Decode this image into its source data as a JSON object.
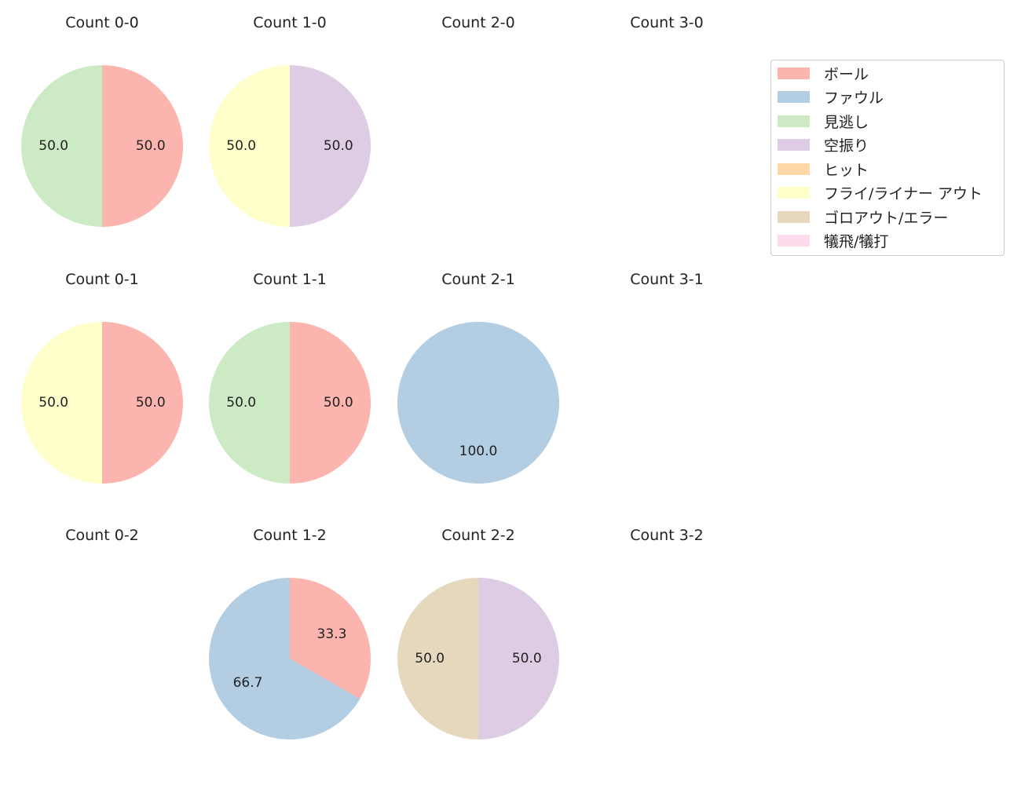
{
  "colors": {
    "ball": "#fbb4ae",
    "foul": "#b3cde3",
    "looking": "#ccebc5",
    "swinging": "#decbe4",
    "hit": "#fed9a6",
    "flyout": "#ffffcc",
    "groundout": "#e5d8bd",
    "sacrifice": "#fddaec"
  },
  "legend": [
    {
      "key": "ball",
      "label": "ボール"
    },
    {
      "key": "foul",
      "label": "ファウル"
    },
    {
      "key": "looking",
      "label": "見逃し"
    },
    {
      "key": "swinging",
      "label": "空振り"
    },
    {
      "key": "hit",
      "label": "ヒット"
    },
    {
      "key": "flyout",
      "label": "フライ/ライナー アウト"
    },
    {
      "key": "groundout",
      "label": "ゴロアウト/エラー"
    },
    {
      "key": "sacrifice",
      "label": "犠飛/犠打"
    }
  ],
  "chart_data": [
    {
      "type": "pie",
      "title": "Count 0-0",
      "slices": [
        {
          "key": "ball",
          "value": 50.0
        },
        {
          "key": "looking",
          "value": 50.0
        }
      ]
    },
    {
      "type": "pie",
      "title": "Count 1-0",
      "slices": [
        {
          "key": "swinging",
          "value": 50.0
        },
        {
          "key": "flyout",
          "value": 50.0
        }
      ]
    },
    {
      "type": "pie",
      "title": "Count 2-0",
      "slices": []
    },
    {
      "type": "pie",
      "title": "Count 3-0",
      "slices": []
    },
    {
      "type": "pie",
      "title": "Count 0-1",
      "slices": [
        {
          "key": "ball",
          "value": 50.0
        },
        {
          "key": "flyout",
          "value": 50.0
        }
      ]
    },
    {
      "type": "pie",
      "title": "Count 1-1",
      "slices": [
        {
          "key": "ball",
          "value": 50.0
        },
        {
          "key": "looking",
          "value": 50.0
        }
      ]
    },
    {
      "type": "pie",
      "title": "Count 2-1",
      "slices": [
        {
          "key": "foul",
          "value": 100.0
        }
      ]
    },
    {
      "type": "pie",
      "title": "Count 3-1",
      "slices": []
    },
    {
      "type": "pie",
      "title": "Count 0-2",
      "slices": []
    },
    {
      "type": "pie",
      "title": "Count 1-2",
      "slices": [
        {
          "key": "ball",
          "value": 33.3
        },
        {
          "key": "foul",
          "value": 66.7
        }
      ]
    },
    {
      "type": "pie",
      "title": "Count 2-2",
      "slices": [
        {
          "key": "swinging",
          "value": 50.0
        },
        {
          "key": "groundout",
          "value": 50.0
        }
      ]
    },
    {
      "type": "pie",
      "title": "Count 3-2",
      "slices": []
    }
  ]
}
